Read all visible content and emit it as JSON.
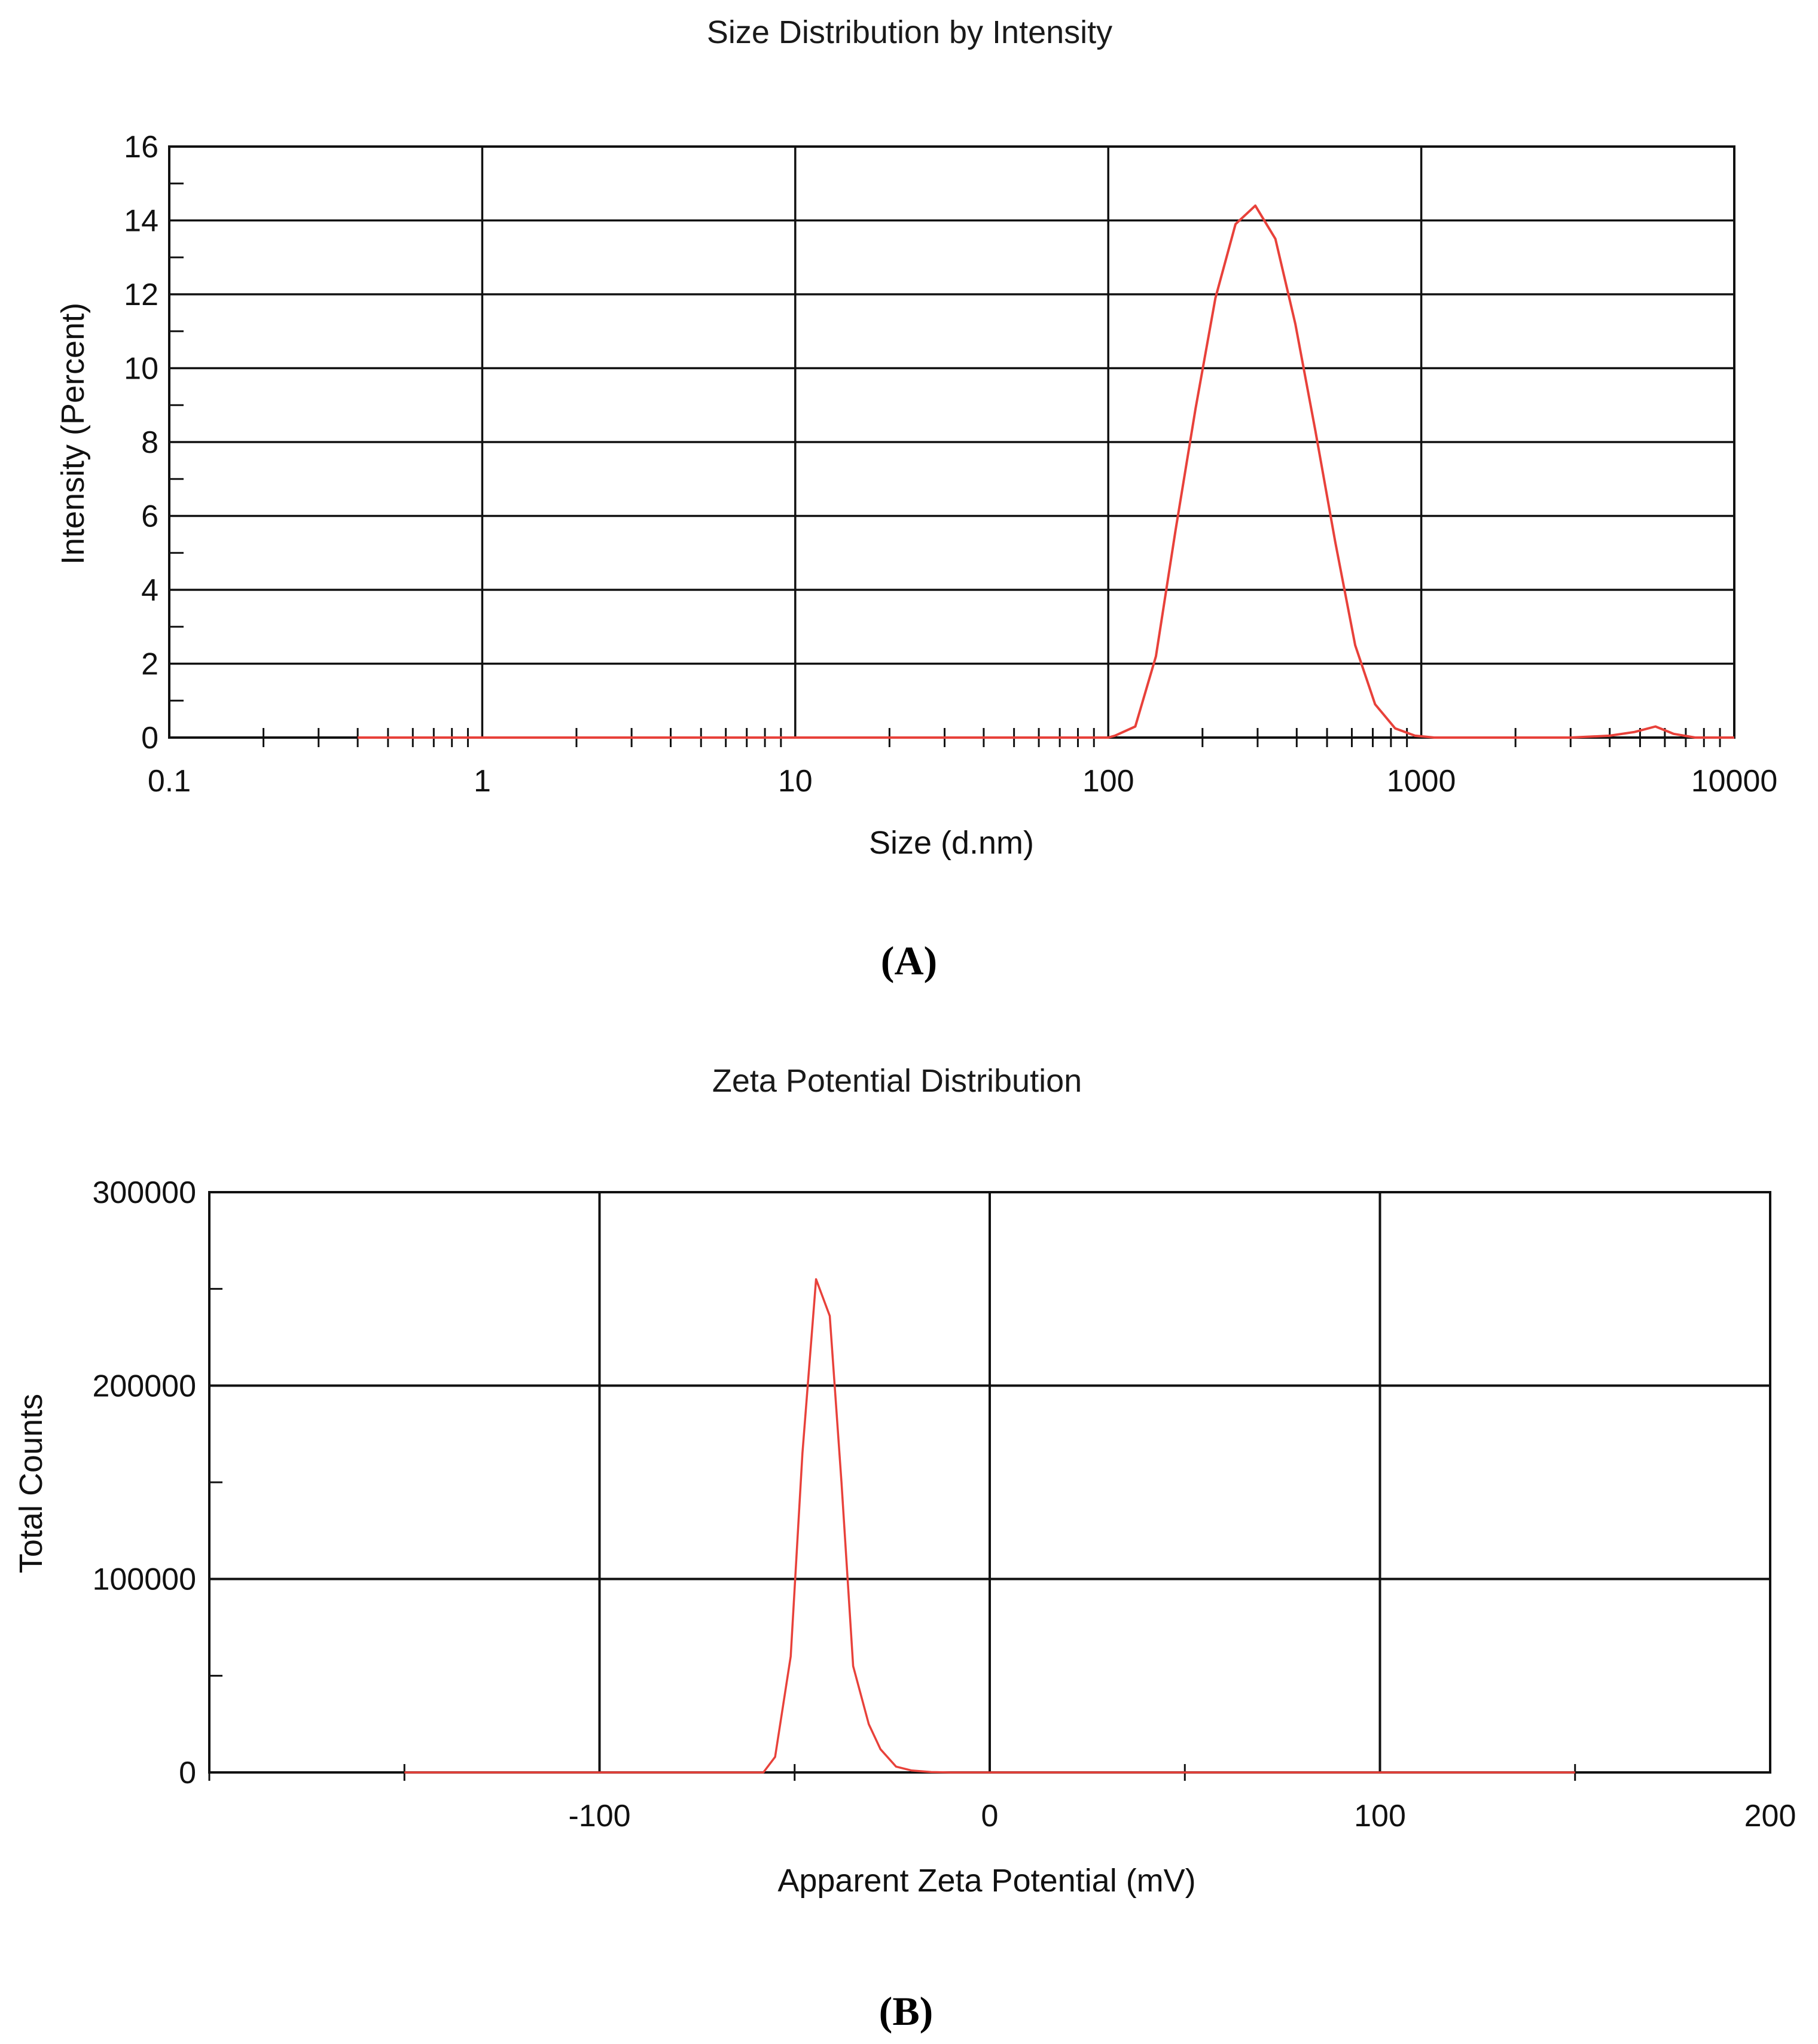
{
  "panels": [
    {
      "label": "A"
    },
    {
      "label": "B"
    }
  ],
  "chart_data": [
    {
      "type": "line",
      "title": "Size Distribution by Intensity",
      "xlabel": "Size (d.nm)",
      "ylabel": "Intensity (Percent)",
      "xscale": "log",
      "xlim": [
        0.1,
        10000
      ],
      "ylim": [
        0,
        16
      ],
      "xticks": [
        0.1,
        1,
        10,
        100,
        1000,
        10000
      ],
      "xtick_labels": [
        "0.1",
        "1",
        "10",
        "100",
        "1000",
        "10000"
      ],
      "yticks": [
        0,
        2,
        4,
        6,
        8,
        10,
        12,
        14,
        16
      ],
      "ytick_labels": [
        "0",
        "2",
        "4",
        "6",
        "8",
        "10",
        "12",
        "14",
        "16"
      ],
      "grid": true,
      "line_color": "#e8413a",
      "series": [
        {
          "x": [
            0.4,
            1,
            10,
            100,
            105,
            122,
            142,
            164,
            190,
            220,
            255,
            295,
            342,
            396,
            459,
            531,
            615,
            712,
            825,
            955,
            1100,
            2000,
            3000,
            4000,
            4800,
            5600,
            6400,
            7500,
            10000
          ],
          "y": [
            0,
            0,
            0,
            0,
            0.05,
            0.3,
            2.2,
            5.6,
            8.9,
            11.9,
            13.9,
            14.4,
            13.5,
            11.2,
            8.3,
            5.3,
            2.5,
            0.9,
            0.25,
            0.05,
            0,
            0,
            0,
            0.05,
            0.15,
            0.3,
            0.1,
            0,
            0
          ]
        }
      ]
    },
    {
      "type": "line",
      "title": "Zeta Potential Distribution",
      "xlabel": "Apparent Zeta Potential (mV)",
      "ylabel": "Total Counts",
      "xlim": [
        -200,
        200
      ],
      "ylim": [
        0,
        300000
      ],
      "xticks": [
        -100,
        0,
        100,
        200
      ],
      "xtick_labels": [
        "-100",
        "0",
        "100",
        "200"
      ],
      "yticks": [
        0,
        100000,
        200000,
        300000
      ],
      "ytick_labels": [
        "0",
        "100000",
        "200000",
        "300000"
      ],
      "grid": true,
      "line_color": "#e8413a",
      "series": [
        {
          "x": [
            -150,
            -110,
            -80,
            -58,
            -55,
            -51,
            -48,
            -44.5,
            -41,
            -38,
            -35,
            -31,
            -28,
            -24,
            -20,
            -15,
            -10,
            0,
            50,
            100,
            150
          ],
          "y": [
            0,
            0,
            0,
            0,
            8000,
            60000,
            165000,
            255000,
            236000,
            150000,
            55000,
            25000,
            12000,
            3000,
            1000,
            200,
            0,
            0,
            0,
            0,
            0
          ]
        }
      ]
    }
  ]
}
